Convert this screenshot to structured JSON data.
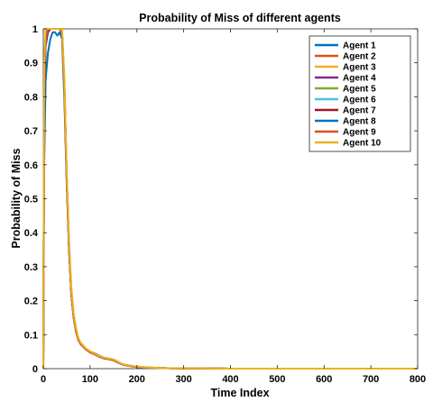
{
  "chart_data": {
    "type": "line",
    "title": "Probability of Miss of different agents",
    "xlabel": "Time Index",
    "ylabel": "Probability of Miss",
    "xlim": [
      0,
      800
    ],
    "ylim": [
      0,
      1
    ],
    "xticks": [
      "0",
      "100",
      "200",
      "300",
      "400",
      "500",
      "600",
      "700",
      "800"
    ],
    "yticks": [
      "0",
      "0.1",
      "0.2",
      "0.3",
      "0.4",
      "0.5",
      "0.6",
      "0.7",
      "0.8",
      "0.9",
      "1"
    ],
    "grid": false,
    "legend_position": "top-right",
    "x": [
      0,
      2,
      5,
      10,
      15,
      20,
      25,
      30,
      35,
      40,
      45,
      50,
      55,
      60,
      65,
      70,
      75,
      80,
      90,
      100,
      110,
      120,
      130,
      140,
      150,
      160,
      170,
      180,
      200,
      220,
      250,
      280,
      300,
      350,
      400,
      500,
      600,
      700,
      800
    ],
    "series": [
      {
        "name": "Agent 1",
        "color": "#0072BD",
        "values": [
          0,
          0.6,
          0.85,
          0.93,
          0.97,
          0.99,
          0.99,
          0.98,
          0.99,
          0.97,
          0.8,
          0.55,
          0.35,
          0.22,
          0.15,
          0.11,
          0.085,
          0.075,
          0.06,
          0.05,
          0.045,
          0.038,
          0.032,
          0.03,
          0.027,
          0.02,
          0.013,
          0.01,
          0.006,
          0.004,
          0.002,
          0.001,
          0.001,
          0.0005,
          0,
          0,
          0,
          0,
          0
        ]
      },
      {
        "name": "Agent 2",
        "color": "#D95319",
        "values": [
          0,
          0.8,
          0.97,
          1,
          1,
          1,
          1,
          1,
          1,
          0.99,
          0.84,
          0.57,
          0.36,
          0.22,
          0.15,
          0.11,
          0.085,
          0.072,
          0.058,
          0.048,
          0.042,
          0.035,
          0.03,
          0.028,
          0.025,
          0.018,
          0.012,
          0.009,
          0.005,
          0.003,
          0.0015,
          0.001,
          0.0008,
          0.0004,
          0,
          0,
          0,
          0,
          0
        ]
      },
      {
        "name": "Agent 3",
        "color": "#EDB120",
        "values": [
          0,
          0.85,
          0.98,
          1,
          1,
          1,
          1,
          1,
          1,
          0.99,
          0.85,
          0.58,
          0.37,
          0.23,
          0.16,
          0.115,
          0.09,
          0.075,
          0.06,
          0.05,
          0.043,
          0.036,
          0.031,
          0.029,
          0.026,
          0.019,
          0.012,
          0.009,
          0.005,
          0.003,
          0.0015,
          0.001,
          0.0008,
          0.0004,
          0,
          0,
          0,
          0,
          0
        ]
      },
      {
        "name": "Agent 4",
        "color": "#7E2F8E",
        "values": [
          0,
          0.82,
          0.97,
          1,
          1,
          1,
          1,
          1,
          1,
          0.99,
          0.84,
          0.57,
          0.36,
          0.22,
          0.15,
          0.11,
          0.085,
          0.073,
          0.059,
          0.049,
          0.042,
          0.035,
          0.03,
          0.028,
          0.025,
          0.018,
          0.012,
          0.009,
          0.005,
          0.003,
          0.0015,
          0.001,
          0.0008,
          0.0004,
          0,
          0,
          0,
          0,
          0
        ]
      },
      {
        "name": "Agent 5",
        "color": "#77AC30",
        "values": [
          0,
          0.83,
          0.97,
          1,
          1,
          1,
          1,
          1,
          1,
          0.99,
          0.84,
          0.57,
          0.36,
          0.22,
          0.15,
          0.11,
          0.085,
          0.073,
          0.059,
          0.049,
          0.042,
          0.035,
          0.03,
          0.028,
          0.025,
          0.018,
          0.012,
          0.009,
          0.005,
          0.003,
          0.0015,
          0.001,
          0.0008,
          0.0004,
          0,
          0,
          0,
          0,
          0
        ]
      },
      {
        "name": "Agent 6",
        "color": "#4DBEEE",
        "values": [
          0,
          0.82,
          0.97,
          1,
          1,
          1,
          1,
          1,
          1,
          0.99,
          0.84,
          0.57,
          0.36,
          0.22,
          0.15,
          0.11,
          0.085,
          0.073,
          0.059,
          0.049,
          0.042,
          0.035,
          0.03,
          0.028,
          0.025,
          0.018,
          0.012,
          0.009,
          0.005,
          0.003,
          0.0015,
          0.001,
          0.0008,
          0.0004,
          0,
          0,
          0,
          0,
          0
        ]
      },
      {
        "name": "Agent 7",
        "color": "#A2142F",
        "values": [
          0,
          0.78,
          0.95,
          0.99,
          1,
          1,
          1,
          1,
          1,
          0.99,
          0.83,
          0.56,
          0.36,
          0.22,
          0.15,
          0.11,
          0.085,
          0.072,
          0.058,
          0.048,
          0.042,
          0.035,
          0.03,
          0.028,
          0.025,
          0.018,
          0.012,
          0.009,
          0.005,
          0.003,
          0.0015,
          0.001,
          0.0008,
          0.0004,
          0,
          0,
          0,
          0,
          0
        ]
      },
      {
        "name": "Agent 8",
        "color": "#0072BD",
        "values": [
          0,
          0.8,
          0.96,
          1,
          1,
          1,
          1,
          1,
          1,
          0.99,
          0.84,
          0.57,
          0.36,
          0.22,
          0.15,
          0.11,
          0.085,
          0.073,
          0.059,
          0.049,
          0.042,
          0.035,
          0.03,
          0.028,
          0.025,
          0.018,
          0.012,
          0.009,
          0.005,
          0.003,
          0.0015,
          0.001,
          0.0008,
          0.0004,
          0,
          0,
          0,
          0,
          0
        ]
      },
      {
        "name": "Agent 9",
        "color": "#D95319",
        "values": [
          0,
          0.82,
          0.97,
          1,
          1,
          1,
          1,
          1,
          1,
          0.99,
          0.84,
          0.57,
          0.36,
          0.22,
          0.15,
          0.11,
          0.085,
          0.073,
          0.059,
          0.049,
          0.042,
          0.035,
          0.03,
          0.028,
          0.025,
          0.018,
          0.012,
          0.009,
          0.005,
          0.003,
          0.0015,
          0.001,
          0.0008,
          0.0004,
          0,
          0,
          0,
          0,
          0
        ]
      },
      {
        "name": "Agent 10",
        "color": "#EDB120",
        "values": [
          0,
          0.9,
          1,
          1,
          1,
          1,
          1,
          1,
          1,
          1,
          0.86,
          0.59,
          0.38,
          0.24,
          0.16,
          0.12,
          0.09,
          0.076,
          0.061,
          0.051,
          0.044,
          0.037,
          0.032,
          0.03,
          0.027,
          0.02,
          0.013,
          0.01,
          0.006,
          0.004,
          0.002,
          0.001,
          0.001,
          0.0005,
          0,
          0,
          0,
          0,
          0
        ]
      }
    ]
  }
}
